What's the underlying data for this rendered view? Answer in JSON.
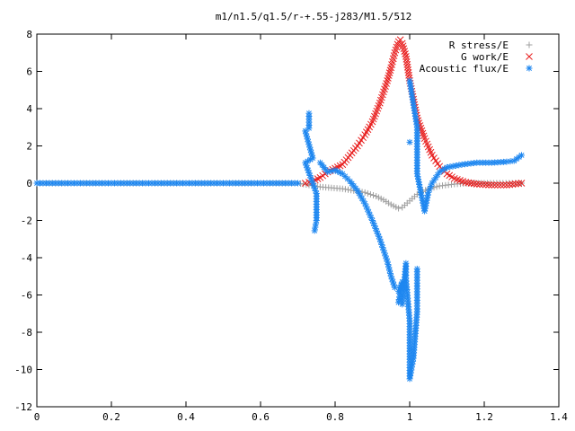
{
  "chart_data": {
    "type": "scatter",
    "title": "m1/n1.5/q1.5/r-+.55-j283/M1.5/512",
    "xlabel": "",
    "ylabel": "",
    "xlim": [
      0,
      1.4
    ],
    "ylim": [
      -12,
      8
    ],
    "x_ticks": [
      "0",
      "0.2",
      "0.4",
      "0.6",
      "0.8",
      "1",
      "1.2",
      "1.4"
    ],
    "y_ticks": [
      "8",
      "6",
      "4",
      "2",
      "0",
      "-2",
      "-4",
      "-6",
      "-8",
      "-10",
      "-12"
    ],
    "legend_position": "top-right",
    "grid": false,
    "series": [
      {
        "name": "R stress/E",
        "marker": "+",
        "color": "#a0a0a0",
        "points": [
          [
            0.0,
            0
          ],
          [
            0.05,
            0
          ],
          [
            0.1,
            0
          ],
          [
            0.15,
            0
          ],
          [
            0.2,
            0
          ],
          [
            0.25,
            0
          ],
          [
            0.3,
            0
          ],
          [
            0.35,
            0
          ],
          [
            0.4,
            0
          ],
          [
            0.45,
            0
          ],
          [
            0.5,
            0
          ],
          [
            0.55,
            0
          ],
          [
            0.6,
            0
          ],
          [
            0.65,
            0
          ],
          [
            0.7,
            0
          ],
          [
            0.73,
            -0.1
          ],
          [
            0.76,
            -0.2
          ],
          [
            0.79,
            -0.25
          ],
          [
            0.82,
            -0.3
          ],
          [
            0.85,
            -0.4
          ],
          [
            0.88,
            -0.5
          ],
          [
            0.91,
            -0.7
          ],
          [
            0.93,
            -0.9
          ],
          [
            0.95,
            -1.15
          ],
          [
            0.97,
            -1.35
          ],
          [
            0.98,
            -1.3
          ],
          [
            1.0,
            -0.95
          ],
          [
            1.02,
            -0.6
          ],
          [
            1.05,
            -0.3
          ],
          [
            1.08,
            -0.15
          ],
          [
            1.12,
            -0.05
          ],
          [
            1.16,
            0
          ],
          [
            1.2,
            0
          ],
          [
            1.25,
            0
          ],
          [
            1.3,
            0
          ]
        ]
      },
      {
        "name": "G work/E",
        "marker": "x",
        "color": "#e81e1e",
        "points": [
          [
            0.72,
            0
          ],
          [
            0.74,
            0.1
          ],
          [
            0.76,
            0.3
          ],
          [
            0.78,
            0.6
          ],
          [
            0.8,
            0.8
          ],
          [
            0.82,
            1.0
          ],
          [
            0.84,
            1.5
          ],
          [
            0.86,
            2.0
          ],
          [
            0.88,
            2.6
          ],
          [
            0.9,
            3.3
          ],
          [
            0.92,
            4.3
          ],
          [
            0.94,
            5.5
          ],
          [
            0.95,
            6.2
          ],
          [
            0.96,
            7.0
          ],
          [
            0.97,
            7.6
          ],
          [
            0.975,
            7.7
          ],
          [
            0.98,
            7.5
          ],
          [
            0.99,
            6.8
          ],
          [
            1.0,
            5.5
          ],
          [
            1.01,
            4.5
          ],
          [
            1.02,
            3.5
          ],
          [
            1.04,
            2.4
          ],
          [
            1.06,
            1.5
          ],
          [
            1.08,
            0.9
          ],
          [
            1.1,
            0.5
          ],
          [
            1.12,
            0.25
          ],
          [
            1.15,
            0.05
          ],
          [
            1.18,
            -0.05
          ],
          [
            1.22,
            -0.1
          ],
          [
            1.26,
            -0.1
          ],
          [
            1.3,
            0
          ]
        ]
      },
      {
        "name": "Acoustic flux/E",
        "marker": "*",
        "color": "#1e87f0",
        "points": [
          [
            0.0,
            0
          ],
          [
            0.05,
            0
          ],
          [
            0.1,
            0
          ],
          [
            0.15,
            0
          ],
          [
            0.2,
            0
          ],
          [
            0.25,
            0
          ],
          [
            0.3,
            0
          ],
          [
            0.35,
            0
          ],
          [
            0.4,
            0
          ],
          [
            0.45,
            0
          ],
          [
            0.5,
            0
          ],
          [
            0.55,
            0
          ],
          [
            0.6,
            0
          ],
          [
            0.65,
            0
          ],
          [
            0.7,
            0
          ],
          [
            0.73,
            3.75
          ],
          [
            0.73,
            2.95
          ],
          [
            0.72,
            2.8
          ],
          [
            0.74,
            1.35
          ],
          [
            0.72,
            1.1
          ],
          [
            0.75,
            -0.55
          ],
          [
            0.75,
            -2.0
          ],
          [
            0.745,
            -2.55
          ],
          [
            0.76,
            1.1
          ],
          [
            0.78,
            0.6
          ],
          [
            0.8,
            0.7
          ],
          [
            0.82,
            0.5
          ],
          [
            0.84,
            0.1
          ],
          [
            0.86,
            -0.4
          ],
          [
            0.88,
            -1.1
          ],
          [
            0.9,
            -2.0
          ],
          [
            0.92,
            -3.0
          ],
          [
            0.94,
            -4.2
          ],
          [
            0.95,
            -5.0
          ],
          [
            0.96,
            -5.6
          ],
          [
            0.97,
            -5.8
          ],
          [
            0.98,
            -5.3
          ],
          [
            0.97,
            -6.4
          ],
          [
            0.98,
            -6.5
          ],
          [
            0.99,
            -4.3
          ],
          [
            0.99,
            -5.1
          ],
          [
            1.0,
            -7.4
          ],
          [
            1.0,
            -9.6
          ],
          [
            1.0,
            -10.5
          ],
          [
            1.01,
            -9.4
          ],
          [
            1.02,
            -6.9
          ],
          [
            1.02,
            -4.6
          ],
          [
            1.0,
            2.2
          ],
          [
            1.0,
            5.5
          ],
          [
            1.02,
            3.0
          ],
          [
            1.02,
            0.5
          ],
          [
            1.04,
            -1.5
          ],
          [
            1.05,
            -0.5
          ],
          [
            1.06,
            0.0
          ],
          [
            1.08,
            0.6
          ],
          [
            1.1,
            0.85
          ],
          [
            1.14,
            1.0
          ],
          [
            1.18,
            1.1
          ],
          [
            1.22,
            1.1
          ],
          [
            1.26,
            1.15
          ],
          [
            1.28,
            1.2
          ],
          [
            1.3,
            1.5
          ]
        ]
      }
    ]
  }
}
